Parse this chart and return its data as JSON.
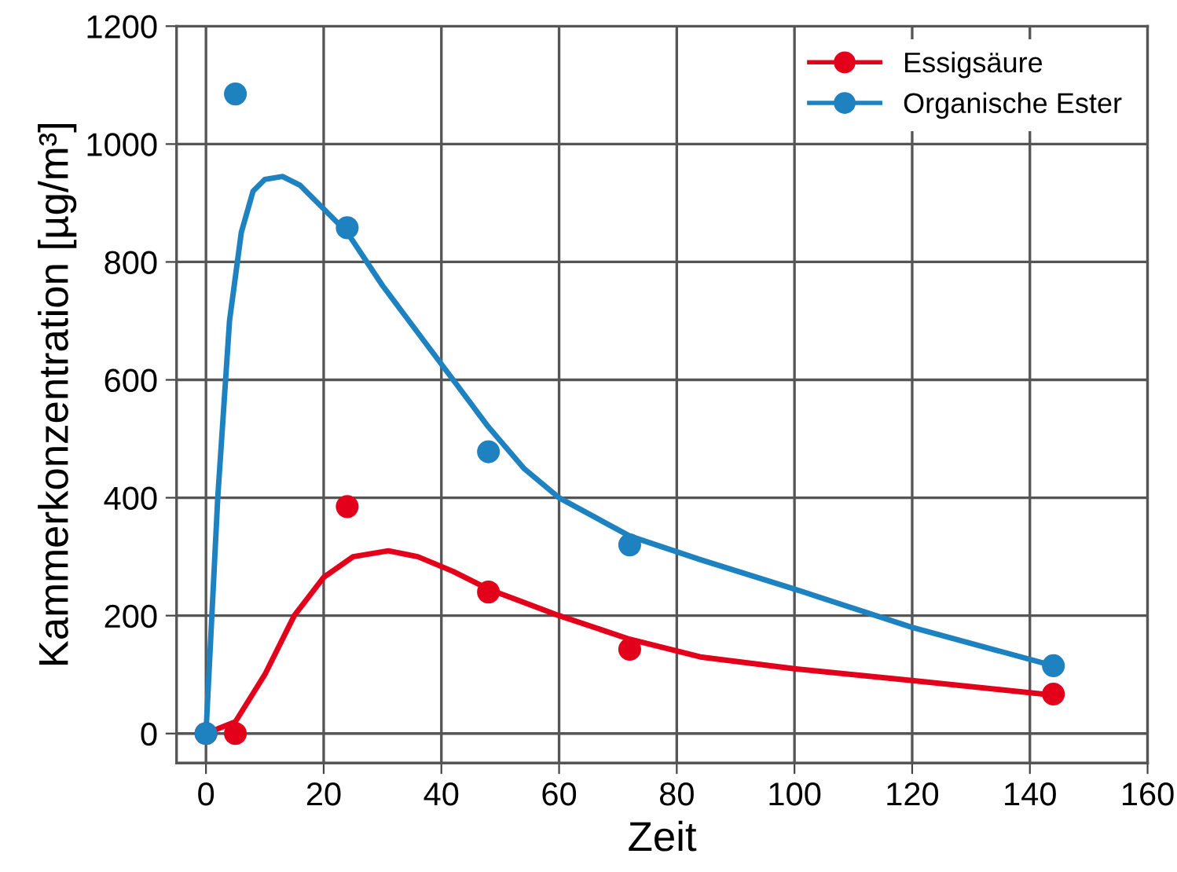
{
  "chart_data": {
    "type": "scatter",
    "xlabel": "Zeit",
    "ylabel": "Kammerkonzentration [µg/m³]",
    "xlim": [
      -5,
      160
    ],
    "xticks": [
      0,
      20,
      40,
      60,
      80,
      100,
      120,
      140,
      160
    ],
    "ylim": [
      -50,
      1200
    ],
    "yticks": [
      0,
      200,
      400,
      600,
      800,
      1000,
      1200
    ],
    "grid": true,
    "legend": "top right",
    "series": [
      {
        "name": "Essigsäure",
        "marker": "circle",
        "color": "#e2001a",
        "x": [
          0,
          5,
          24,
          48,
          72,
          144
        ],
        "values": [
          0,
          0,
          385,
          240,
          143,
          67
        ]
      },
      {
        "name": "Organische Ester",
        "marker": "circle",
        "color": "#1f82c0",
        "x": [
          0,
          5,
          24,
          48,
          72,
          144
        ],
        "values": [
          0,
          1085,
          858,
          478,
          320,
          115
        ]
      },
      {
        "type": "line",
        "color": "#e2001a",
        "x": [
          0,
          5,
          10,
          15,
          20,
          25,
          31,
          36,
          42,
          48,
          60,
          72,
          84,
          100,
          120,
          144
        ],
        "values": [
          0,
          20,
          100,
          200,
          265,
          300,
          310,
          300,
          275,
          245,
          200,
          160,
          130,
          110,
          90,
          65
        ]
      },
      {
        "type": "line",
        "color": "#1f82c0",
        "x": [
          0,
          2,
          4,
          6,
          8,
          10,
          13,
          16,
          20,
          24,
          30,
          36,
          42,
          48,
          54,
          60,
          72,
          84,
          100,
          120,
          144
        ],
        "values": [
          0,
          400,
          700,
          850,
          920,
          940,
          945,
          930,
          890,
          850,
          760,
          680,
          600,
          520,
          450,
          400,
          335,
          295,
          245,
          180,
          115
        ]
      }
    ]
  }
}
